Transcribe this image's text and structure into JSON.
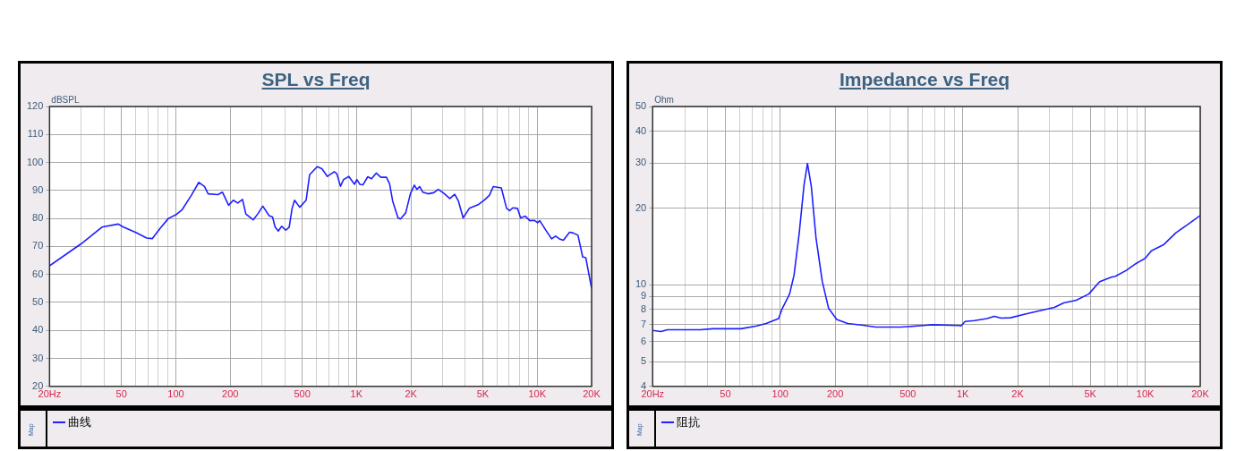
{
  "chart_data": [
    {
      "type": "line",
      "title": "SPL vs Freq",
      "ylabel": "dBSPL",
      "log": "x",
      "grid": true,
      "legend": "bottom",
      "annotations": [
        "Map"
      ],
      "xlim": [
        20,
        20000
      ],
      "ylim": [
        20,
        120
      ],
      "xticks": [
        {
          "value": 20,
          "label": "20Hz"
        },
        {
          "value": 30,
          "label": null
        },
        {
          "value": 40,
          "label": null
        },
        50,
        {
          "value": 60,
          "label": null
        },
        {
          "value": 70,
          "label": null
        },
        {
          "value": 80,
          "label": null
        },
        {
          "value": 90,
          "label": null
        },
        100,
        200,
        {
          "value": 300,
          "label": null
        },
        {
          "value": 400,
          "label": null
        },
        500,
        {
          "value": 600,
          "label": null
        },
        {
          "value": 700,
          "label": null
        },
        {
          "value": 800,
          "label": null
        },
        {
          "value": 900,
          "label": null
        },
        {
          "value": 1000,
          "label": "1K"
        },
        {
          "value": 2000,
          "label": "2K"
        },
        {
          "value": 3000,
          "label": null
        },
        {
          "value": 4000,
          "label": null
        },
        {
          "value": 5000,
          "label": "5K"
        },
        {
          "value": 6000,
          "label": null
        },
        {
          "value": 7000,
          "label": null
        },
        {
          "value": 8000,
          "label": null
        },
        {
          "value": 9000,
          "label": null
        },
        {
          "value": 10000,
          "label": "10K"
        },
        {
          "value": 20000,
          "label": "20K"
        }
      ],
      "yticks": [
        20,
        30,
        40,
        50,
        60,
        70,
        80,
        90,
        100,
        110,
        120
      ],
      "series": [
        {
          "name": "曲线",
          "color": "#1f1fff",
          "x": [
            20,
            30,
            39,
            48,
            51,
            60,
            69,
            74,
            82,
            91,
            100,
            108,
            122,
            134,
            144,
            151,
            171,
            181,
            196,
            208,
            220,
            234,
            244,
            268,
            284,
            303,
            328,
            343,
            354,
            369,
            385,
            406,
            424,
            440,
            454,
            485,
            526,
            550,
            606,
            643,
            690,
            753,
            778,
            815,
            848,
            907,
            975,
            1005,
            1042,
            1085,
            1154,
            1211,
            1285,
            1364,
            1465,
            1524,
            1585,
            1695,
            1750,
            1872,
            1986,
            2090,
            2158,
            2235,
            2325,
            2490,
            2673,
            2835,
            3070,
            3283,
            3495,
            3665,
            3890,
            4210,
            4740,
            5130,
            5445,
            5710,
            6330,
            6770,
            7040,
            7330,
            7780,
            8090,
            8590,
            9110,
            9670,
            10050,
            10340,
            11110,
            12020,
            12650,
            13270,
            13960,
            15110,
            15840,
            16810,
            17850,
            18570,
            20000
          ],
          "values": [
            63.1,
            71,
            76.9,
            78,
            77,
            75,
            73,
            72.8,
            76.5,
            80,
            81.3,
            83,
            88.3,
            92.9,
            91.4,
            88.8,
            88.5,
            89.4,
            84.7,
            86.5,
            85.5,
            86.8,
            81.6,
            79.5,
            81.6,
            84.4,
            81,
            80.5,
            77,
            75.5,
            77.2,
            75.8,
            76.9,
            83.6,
            86.5,
            84,
            86.5,
            95.6,
            98.5,
            97.8,
            95,
            96.7,
            96,
            91.5,
            93.9,
            95,
            92.2,
            93.9,
            92.2,
            92,
            94.9,
            94.2,
            96.2,
            94.7,
            94.7,
            92.4,
            86.2,
            80.3,
            79.8,
            82,
            88.8,
            91.9,
            90.4,
            91.4,
            89.4,
            88.8,
            89.2,
            90.4,
            88.8,
            87.1,
            88.6,
            86.2,
            80.2,
            83.6,
            85,
            86.7,
            88.3,
            91.4,
            90.9,
            83.6,
            82.8,
            83.8,
            83.6,
            80.2,
            80.8,
            79.2,
            79.3,
            78.5,
            79.2,
            76,
            72.7,
            73.7,
            72.7,
            72.2,
            75.1,
            74.8,
            74,
            66.3,
            66,
            55
          ]
        }
      ]
    },
    {
      "type": "line",
      "title": "Impedance vs Freq",
      "ylabel": "Ohm",
      "log": "xy",
      "grid": true,
      "legend": "bottom",
      "annotations": [
        "Map"
      ],
      "xlim": [
        20,
        20000
      ],
      "ylim": [
        4,
        50
      ],
      "xticks": [
        {
          "value": 20,
          "label": "20Hz"
        },
        {
          "value": 30,
          "label": null
        },
        {
          "value": 40,
          "label": null
        },
        50,
        {
          "value": 60,
          "label": null
        },
        {
          "value": 70,
          "label": null
        },
        {
          "value": 80,
          "label": null
        },
        {
          "value": 90,
          "label": null
        },
        100,
        200,
        {
          "value": 300,
          "label": null
        },
        {
          "value": 400,
          "label": null
        },
        500,
        {
          "value": 600,
          "label": null
        },
        {
          "value": 700,
          "label": null
        },
        {
          "value": 800,
          "label": null
        },
        {
          "value": 900,
          "label": null
        },
        {
          "value": 1000,
          "label": "1K"
        },
        {
          "value": 2000,
          "label": "2K"
        },
        {
          "value": 3000,
          "label": null
        },
        {
          "value": 4000,
          "label": null
        },
        {
          "value": 5000,
          "label": "5K"
        },
        {
          "value": 6000,
          "label": null
        },
        {
          "value": 7000,
          "label": null
        },
        {
          "value": 8000,
          "label": null
        },
        {
          "value": 9000,
          "label": null
        },
        {
          "value": 10000,
          "label": "10K"
        },
        {
          "value": 20000,
          "label": "20K"
        }
      ],
      "yticks": [
        4,
        5,
        6,
        7,
        8,
        9,
        10,
        20,
        30,
        40,
        50
      ],
      "series": [
        {
          "name": "阻抗",
          "color": "#1f1fff",
          "x": [
            20,
            22.2,
            24.1,
            36.5,
            42.7,
            61,
            74.3,
            83.7,
            98,
            102,
            112.5,
            119,
            127,
            135,
            141,
            148,
            157,
            170,
            184,
            204,
            234,
            285,
            334,
            457,
            628,
            679,
            951,
            977,
            1030,
            1160,
            1358,
            1487,
            1622,
            1825,
            2224,
            2710,
            3175,
            3575,
            4190,
            4900,
            5630,
            6470,
            6860,
            7880,
            8870,
            9980,
            10810,
            12660,
            14720,
            17030,
            20000
          ],
          "values": [
            6.63,
            6.56,
            6.67,
            6.67,
            6.73,
            6.73,
            6.9,
            7.06,
            7.38,
            8.0,
            9.2,
            10.9,
            15.9,
            24.6,
            29.9,
            24.3,
            15.3,
            10.3,
            8.1,
            7.32,
            7.06,
            6.94,
            6.83,
            6.83,
            6.94,
            6.98,
            6.93,
            6.9,
            7.19,
            7.24,
            7.38,
            7.53,
            7.41,
            7.43,
            7.7,
            7.95,
            8.16,
            8.5,
            8.7,
            9.2,
            10.3,
            10.7,
            10.8,
            11.4,
            12.1,
            12.7,
            13.6,
            14.4,
            16,
            17.2,
            18.7
          ]
        }
      ]
    }
  ]
}
